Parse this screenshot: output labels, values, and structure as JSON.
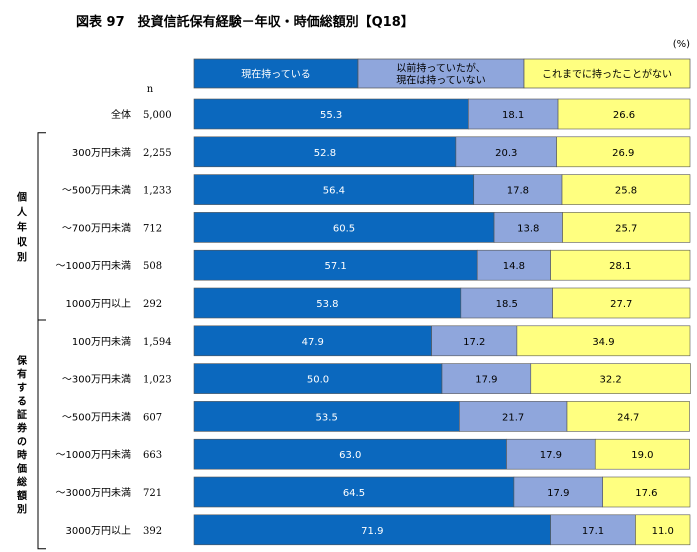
{
  "chart_data": {
    "type": "bar",
    "stacked": true,
    "orientation": "horizontal",
    "title": "図表 97　投資信託保有経験－年収・時価総額別【Q18】",
    "unit_label": "(%)",
    "n_header": "n",
    "xlim": [
      0,
      100
    ],
    "legend_placement": "top",
    "series": [
      {
        "name": "現在持っている",
        "color": "#0b68be",
        "text_color": "#ffffff"
      },
      {
        "name": "以前持っていたが、現在は持っていない",
        "name_lines": [
          "以前持っていたが、",
          "現在は持っていない"
        ],
        "color": "#8fa6dc",
        "text_color": "#000000"
      },
      {
        "name": "これまでに持ったことがない",
        "color": "#ffff80",
        "text_color": "#000000"
      }
    ],
    "groups": [
      {
        "label": "",
        "rows": [
          {
            "label": "全体",
            "n": "5,000",
            "values": [
              55.3,
              18.1,
              26.6
            ]
          }
        ]
      },
      {
        "label": "個人年収別",
        "rows": [
          {
            "label": "300万円未満",
            "n": "2,255",
            "values": [
              52.8,
              20.3,
              26.9
            ]
          },
          {
            "label": "～500万円未満",
            "n": "1,233",
            "values": [
              56.4,
              17.8,
              25.8
            ]
          },
          {
            "label": "～700万円未満",
            "n": "712",
            "values": [
              60.5,
              13.8,
              25.7
            ]
          },
          {
            "label": "～1000万円未満",
            "n": "508",
            "values": [
              57.1,
              14.8,
              28.1
            ]
          },
          {
            "label": "1000万円以上",
            "n": "292",
            "values": [
              53.8,
              18.5,
              27.7
            ]
          }
        ]
      },
      {
        "label": "保有する証券の時価総額別",
        "rows": [
          {
            "label": "100万円未満",
            "n": "1,594",
            "values": [
              47.9,
              17.2,
              34.9
            ]
          },
          {
            "label": "～300万円未満",
            "n": "1,023",
            "values": [
              50.0,
              17.9,
              32.2
            ]
          },
          {
            "label": "～500万円未満",
            "n": "607",
            "values": [
              53.5,
              21.7,
              24.7
            ]
          },
          {
            "label": "～1000万円未満",
            "n": "663",
            "values": [
              63.0,
              17.9,
              19.0
            ]
          },
          {
            "label": "～3000万円未満",
            "n": "721",
            "values": [
              64.5,
              17.9,
              17.6
            ]
          },
          {
            "label": "3000万円以上",
            "n": "392",
            "values": [
              71.9,
              17.1,
              11.0
            ]
          }
        ]
      }
    ]
  }
}
